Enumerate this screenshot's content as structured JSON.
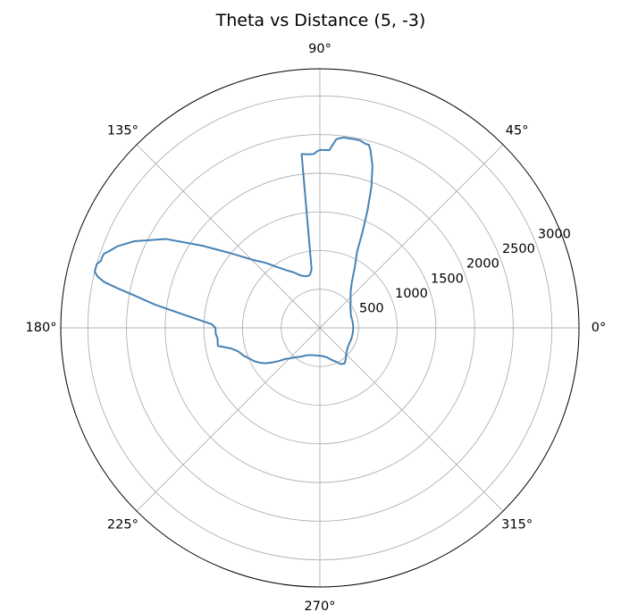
{
  "chart_data": {
    "type": "line",
    "projection": "polar",
    "title": "Theta vs Distance (5, -3)",
    "angle_unit": "degrees",
    "angular_ticks": [
      0,
      45,
      90,
      135,
      180,
      225,
      270,
      315
    ],
    "angular_tick_labels": [
      "0°",
      "45°",
      "90°",
      "135°",
      "180°",
      "225°",
      "270°",
      "315°"
    ],
    "radial_ticks": [
      500,
      1000,
      1500,
      2000,
      2500,
      3000
    ],
    "radial_tick_labels": [
      "500",
      "1000",
      "1500",
      "2000",
      "2500",
      "3000"
    ],
    "radial_label_angle_deg": 22.5,
    "rlim": [
      0,
      3350
    ],
    "grid": true,
    "color": "#4682b4",
    "series": [
      {
        "name": "",
        "theta": [
          0,
          2,
          4,
          6,
          8,
          10,
          15,
          20,
          25,
          30,
          35,
          40,
          45,
          50,
          55,
          60,
          64,
          66,
          68,
          70,
          72,
          74,
          75,
          76,
          78,
          80,
          83,
          85,
          87,
          88,
          89,
          90,
          91,
          92,
          94,
          96,
          98,
          100,
          102,
          105,
          110,
          115,
          120,
          125,
          130,
          135,
          140,
          145,
          150,
          155,
          158,
          160,
          161,
          162,
          163,
          164,
          165,
          166,
          167,
          168,
          169,
          170,
          172,
          175,
          178,
          180,
          183,
          186,
          190,
          193,
          196,
          200,
          203,
          207,
          210,
          213,
          216,
          219,
          222,
          225,
          228,
          232,
          236,
          240,
          245,
          250,
          255,
          260,
          263,
          266,
          269,
          272,
          275,
          278,
          281,
          284,
          287,
          290,
          295,
          300,
          305,
          310,
          315,
          320,
          325,
          330,
          335,
          340,
          345,
          350,
          355,
          358,
          360
        ],
        "r": [
          430,
          430,
          430,
          430,
          430,
          430,
          430,
          430,
          440,
          460,
          480,
          520,
          560,
          620,
          720,
          900,
          1100,
          1350,
          1650,
          1950,
          2200,
          2380,
          2450,
          2450,
          2480,
          2480,
          2480,
          2450,
          2300,
          2300,
          2300,
          2300,
          2280,
          2250,
          2250,
          2260,
          770,
          710,
          690,
          690,
          720,
          790,
          860,
          960,
          1100,
          1250,
          1500,
          1850,
          2300,
          2650,
          2820,
          2900,
          2950,
          2960,
          2960,
          3000,
          3000,
          3000,
          2950,
          2850,
          2650,
          2450,
          2150,
          1700,
          1400,
          1350,
          1350,
          1330,
          1340,
          1180,
          1100,
          1050,
          1000,
          950,
          900,
          840,
          760,
          680,
          600,
          560,
          520,
          480,
          450,
          420,
          390,
          375,
          365,
          360,
          360,
          360,
          360,
          362,
          365,
          372,
          382,
          395,
          415,
          440,
          480,
          540,
          560,
          520,
          480,
          455,
          440,
          432,
          430,
          430,
          430,
          430,
          430,
          430,
          430
        ]
      }
    ]
  }
}
